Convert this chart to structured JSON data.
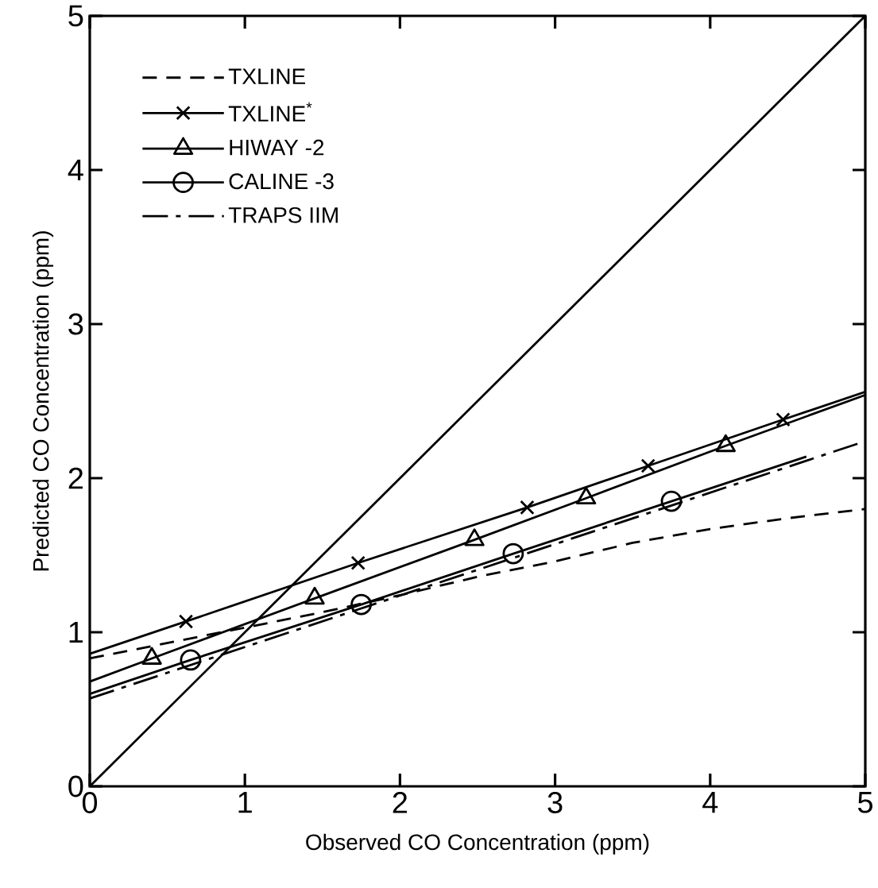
{
  "chart_data": {
    "type": "line",
    "xlabel": "Observed  CO  Concentration (ppm)",
    "ylabel": "Predicted  CO  Concentration (ppm)",
    "xlim": [
      0,
      5
    ],
    "ylim": [
      0,
      5
    ],
    "xticks": [
      0,
      1,
      2,
      3,
      4,
      5
    ],
    "yticks": [
      0,
      1,
      2,
      3,
      4,
      5
    ],
    "grid": false,
    "legend": "top left",
    "series": [
      {
        "color": "#000000",
        "line_style": "solid",
        "marker": "none",
        "x": [
          0,
          5
        ],
        "values": [
          0,
          5
        ]
      },
      {
        "name": "TXLINE",
        "color": "#000000",
        "line_style": "dashed",
        "marker": "none",
        "x": [
          0,
          0.5,
          1,
          1.5,
          2,
          2.5,
          3,
          3.5,
          4,
          4.5,
          5
        ],
        "values": [
          0.83,
          0.93,
          1.03,
          1.13,
          1.24,
          1.36,
          1.46,
          1.58,
          1.67,
          1.74,
          1.8
        ]
      },
      {
        "name": "TXLINE$^{*}$",
        "color": "#000000",
        "line_style": "solid",
        "marker": "cross",
        "x": [
          0,
          0.62,
          1.73,
          2.82,
          3.6,
          4.47,
          5
        ],
        "values": [
          0.86,
          1.07,
          1.45,
          1.81,
          2.08,
          2.38,
          2.56
        ]
      },
      {
        "name": "HIWAY  -2",
        "color": "#000000",
        "line_style": "solid",
        "marker": "triangle",
        "x": [
          0,
          0.4,
          1.45,
          2.48,
          3.2,
          4.1,
          5
        ],
        "values": [
          0.68,
          0.83,
          1.22,
          1.6,
          1.87,
          2.21,
          2.54
        ]
      },
      {
        "name": "CALINE -3",
        "color": "#000000",
        "line_style": "solid",
        "marker": "circle",
        "x": [
          0,
          0.65,
          1.75,
          2.73,
          3.75,
          4.62
        ],
        "values": [
          0.6,
          0.82,
          1.18,
          1.51,
          1.85,
          2.14
        ]
      },
      {
        "name": "TRAPS  IIM",
        "color": "#000000",
        "line_style": "dashdot",
        "marker": "none",
        "x": [
          0,
          5
        ],
        "values": [
          0.57,
          2.24
        ]
      }
    ]
  }
}
